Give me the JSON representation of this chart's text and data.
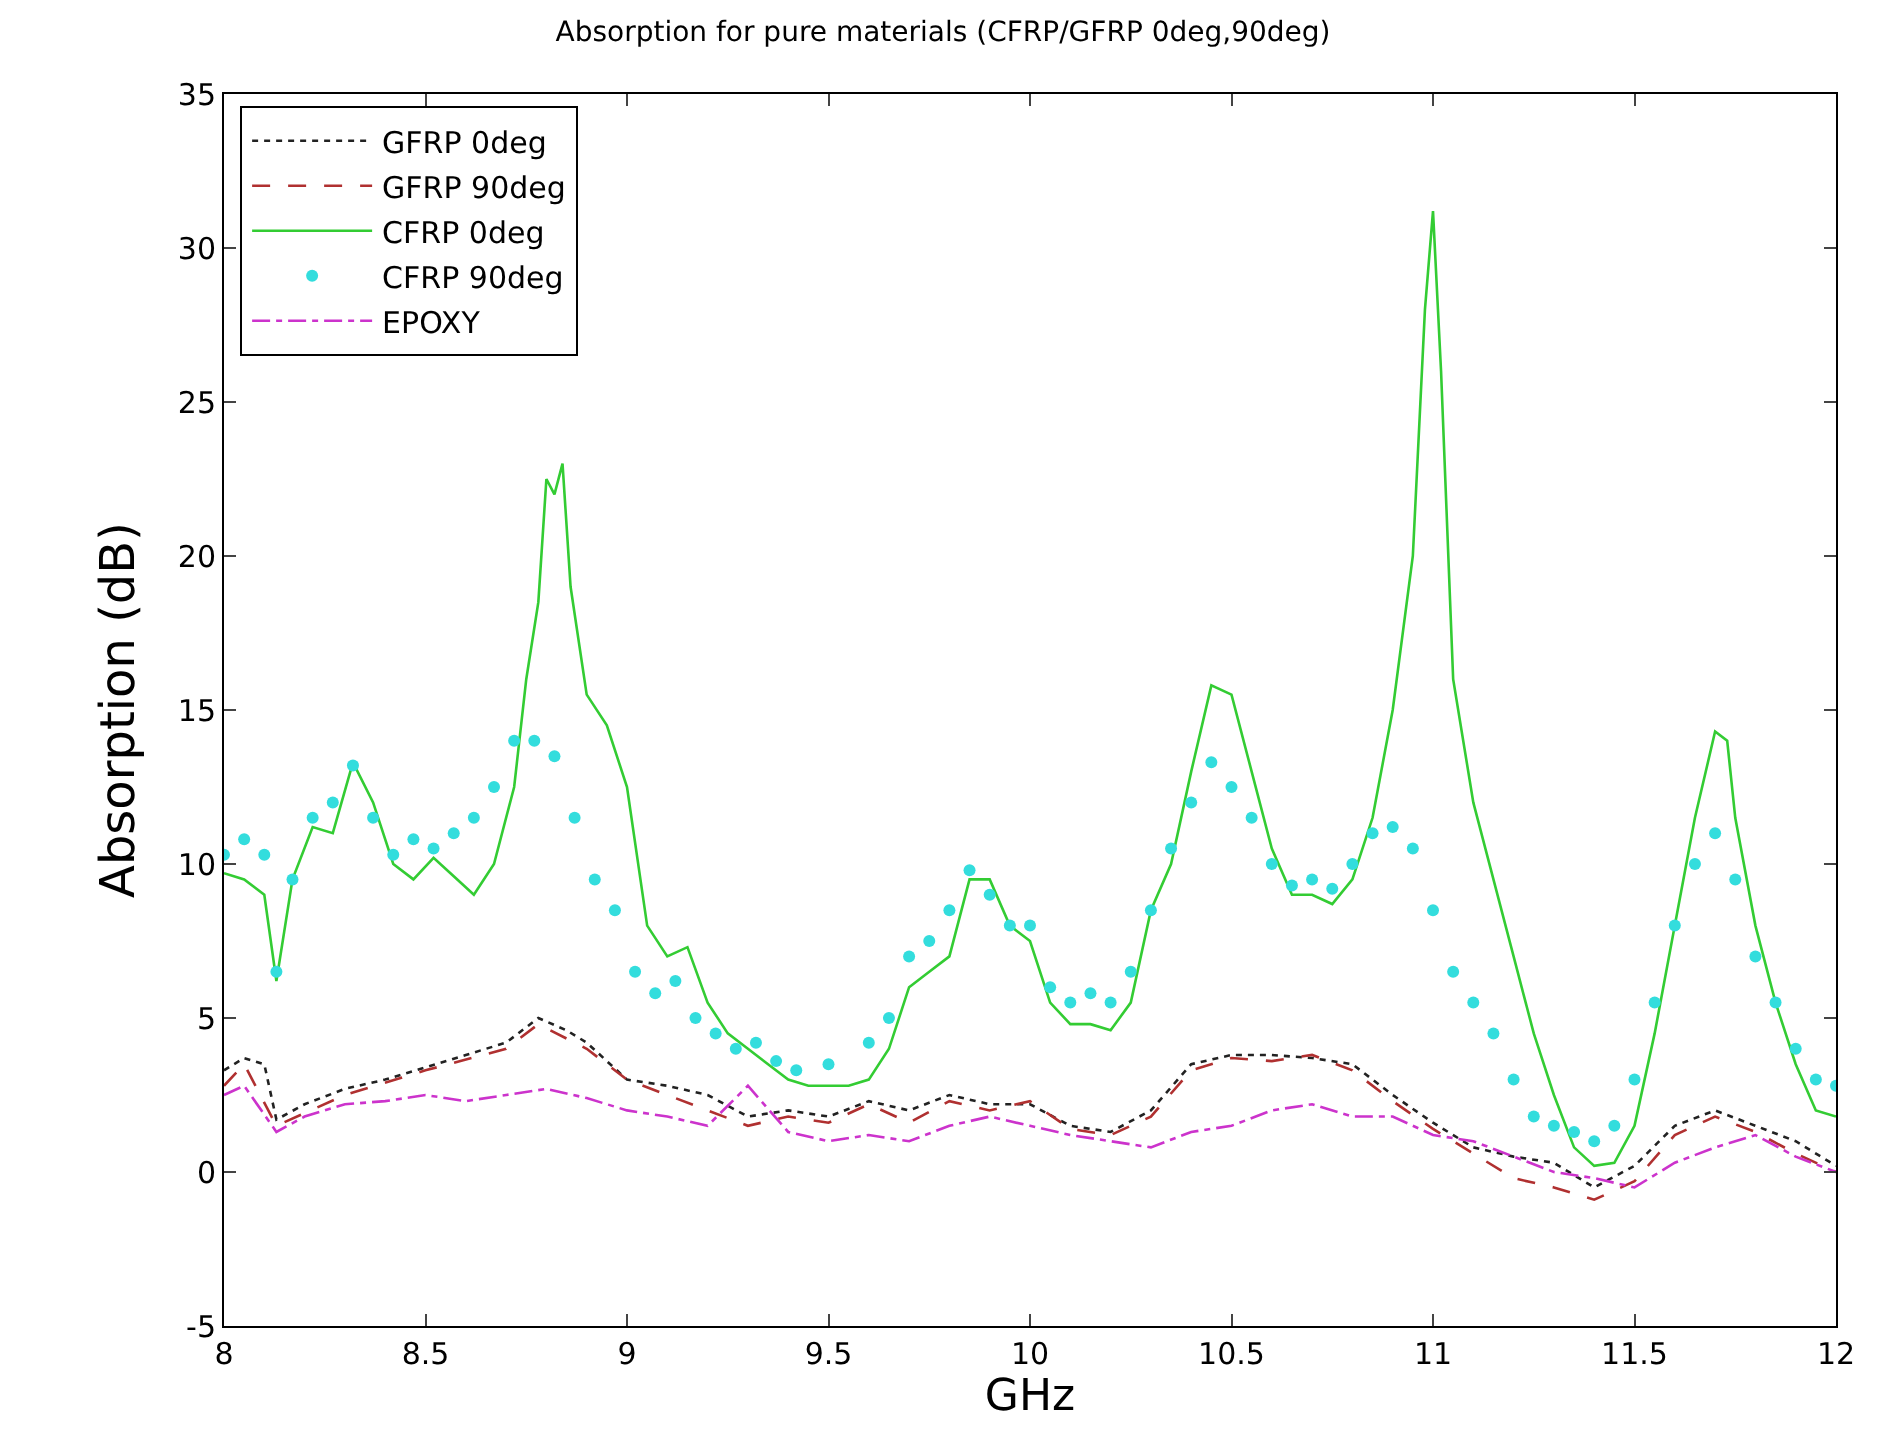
{
  "chart_data": {
    "type": "line",
    "title": "Absorption for pure materials (CFRP/GFRP 0deg,90deg)",
    "xlabel": "GHz",
    "ylabel": "Absorption (dB)",
    "xlim": [
      8,
      12
    ],
    "ylim": [
      -5,
      35
    ],
    "xticks": [
      8,
      8.5,
      9,
      9.5,
      10,
      10.5,
      11,
      11.5,
      12
    ],
    "yticks": [
      -5,
      0,
      5,
      10,
      15,
      20,
      25,
      30,
      35
    ],
    "legend": "top left",
    "series": [
      {
        "name": "GFRP 0deg",
        "color": "#222222",
        "line_style": "dotted",
        "marker": "none",
        "x": [
          8.0,
          8.05,
          8.1,
          8.13,
          8.2,
          8.3,
          8.4,
          8.5,
          8.6,
          8.7,
          8.78,
          8.85,
          8.9,
          9.0,
          9.1,
          9.2,
          9.3,
          9.4,
          9.5,
          9.6,
          9.7,
          9.8,
          9.9,
          10.0,
          10.1,
          10.2,
          10.3,
          10.4,
          10.5,
          10.6,
          10.7,
          10.8,
          10.9,
          11.0,
          11.1,
          11.2,
          11.3,
          11.4,
          11.5,
          11.6,
          11.7,
          11.8,
          11.9,
          12.0
        ],
        "values": [
          3.3,
          3.7,
          3.5,
          1.7,
          2.2,
          2.7,
          3.0,
          3.4,
          3.8,
          4.2,
          5.0,
          4.6,
          4.2,
          3.0,
          2.8,
          2.5,
          1.8,
          2.0,
          1.8,
          2.3,
          2.0,
          2.5,
          2.2,
          2.2,
          1.5,
          1.3,
          2.0,
          3.5,
          3.8,
          3.8,
          3.7,
          3.5,
          2.5,
          1.6,
          0.8,
          0.5,
          0.3,
          -0.5,
          0.2,
          1.5,
          2.0,
          1.5,
          1.0,
          0.2
        ]
      },
      {
        "name": "GFRP 90deg",
        "color": "#b03030",
        "line_style": "dashed",
        "marker": "none",
        "x": [
          8.0,
          8.05,
          8.13,
          8.3,
          8.5,
          8.7,
          8.78,
          8.9,
          9.0,
          9.1,
          9.2,
          9.3,
          9.4,
          9.5,
          9.6,
          9.7,
          9.8,
          9.9,
          10.0,
          10.1,
          10.2,
          10.3,
          10.4,
          10.5,
          10.6,
          10.7,
          10.8,
          10.9,
          11.0,
          11.1,
          11.2,
          11.3,
          11.4,
          11.5,
          11.6,
          11.7,
          11.8,
          11.9,
          12.0
        ],
        "values": [
          2.8,
          3.5,
          1.5,
          2.5,
          3.3,
          4.0,
          4.8,
          4.0,
          3.0,
          2.5,
          2.0,
          1.5,
          1.8,
          1.6,
          2.2,
          1.6,
          2.3,
          2.0,
          2.3,
          1.4,
          1.2,
          1.8,
          3.3,
          3.7,
          3.6,
          3.8,
          3.3,
          2.3,
          1.4,
          0.6,
          -0.2,
          -0.5,
          -0.9,
          -0.3,
          1.2,
          1.8,
          1.3,
          0.6,
          0.0
        ]
      },
      {
        "name": "CFRP 0deg",
        "color": "#33cc33",
        "line_style": "solid",
        "marker": "none",
        "x": [
          8.0,
          8.05,
          8.1,
          8.13,
          8.17,
          8.22,
          8.27,
          8.32,
          8.37,
          8.42,
          8.47,
          8.52,
          8.57,
          8.62,
          8.67,
          8.72,
          8.75,
          8.78,
          8.8,
          8.82,
          8.84,
          8.86,
          8.9,
          8.95,
          9.0,
          9.05,
          9.1,
          9.15,
          9.2,
          9.25,
          9.3,
          9.35,
          9.4,
          9.45,
          9.5,
          9.55,
          9.6,
          9.65,
          9.7,
          9.75,
          9.8,
          9.85,
          9.9,
          9.95,
          10.0,
          10.05,
          10.1,
          10.15,
          10.2,
          10.25,
          10.3,
          10.35,
          10.4,
          10.45,
          10.5,
          10.55,
          10.6,
          10.65,
          10.7,
          10.75,
          10.8,
          10.85,
          10.9,
          10.95,
          10.98,
          11.0,
          11.02,
          11.05,
          11.1,
          11.15,
          11.2,
          11.25,
          11.3,
          11.35,
          11.4,
          11.45,
          11.5,
          11.55,
          11.6,
          11.65,
          11.7,
          11.73,
          11.75,
          11.8,
          11.85,
          11.9,
          11.95,
          12.0
        ],
        "values": [
          9.7,
          9.5,
          9.0,
          6.2,
          9.5,
          11.2,
          11.0,
          13.3,
          12.0,
          10.0,
          9.5,
          10.2,
          9.6,
          9.0,
          10.0,
          12.5,
          16,
          18.5,
          22.5,
          22.0,
          23.0,
          19,
          15.5,
          14.5,
          12.5,
          8.0,
          7.0,
          7.3,
          5.5,
          4.5,
          4.0,
          3.5,
          3.0,
          2.8,
          2.8,
          2.8,
          3.0,
          4.0,
          6.0,
          6.5,
          7.0,
          9.5,
          9.5,
          8.0,
          7.5,
          5.5,
          4.8,
          4.8,
          4.6,
          5.5,
          8.5,
          10.0,
          13.0,
          15.8,
          15.5,
          13.0,
          10.5,
          9.0,
          9.0,
          8.7,
          9.5,
          11.5,
          15.0,
          20,
          28,
          31.2,
          26,
          16,
          12.0,
          9.5,
          7.0,
          4.5,
          2.5,
          0.8,
          0.2,
          0.3,
          1.5,
          4.5,
          8.0,
          11.5,
          14.3,
          14.0,
          11.5,
          8.0,
          5.5,
          3.5,
          2.0,
          1.8
        ]
      },
      {
        "name": "CFRP 90deg",
        "type": "scatter",
        "color": "#33dddd",
        "marker": "circle",
        "x": [
          8.0,
          8.05,
          8.1,
          8.13,
          8.17,
          8.22,
          8.27,
          8.32,
          8.37,
          8.42,
          8.47,
          8.52,
          8.57,
          8.62,
          8.67,
          8.72,
          8.77,
          8.82,
          8.87,
          8.92,
          8.97,
          9.02,
          9.07,
          9.12,
          9.17,
          9.22,
          9.27,
          9.32,
          9.37,
          9.42,
          9.5,
          9.6,
          9.65,
          9.7,
          9.75,
          9.8,
          9.85,
          9.9,
          9.95,
          10.0,
          10.05,
          10.1,
          10.15,
          10.2,
          10.25,
          10.3,
          10.35,
          10.4,
          10.45,
          10.5,
          10.55,
          10.6,
          10.65,
          10.7,
          10.75,
          10.8,
          10.85,
          10.9,
          10.95,
          11.0,
          11.05,
          11.1,
          11.15,
          11.2,
          11.25,
          11.3,
          11.35,
          11.4,
          11.45,
          11.5,
          11.55,
          11.6,
          11.65,
          11.7,
          11.75,
          11.8,
          11.85,
          11.9,
          11.95,
          12.0
        ],
        "values": [
          10.3,
          10.8,
          10.3,
          6.5,
          9.5,
          11.5,
          12.0,
          13.2,
          11.5,
          10.3,
          10.8,
          10.5,
          11.0,
          11.5,
          12.5,
          14.0,
          14.0,
          13.5,
          11.5,
          9.5,
          8.5,
          6.5,
          5.8,
          6.2,
          5.0,
          4.5,
          4.0,
          4.2,
          3.6,
          3.3,
          3.5,
          4.2,
          5.0,
          7.0,
          7.5,
          8.5,
          9.8,
          9.0,
          8.0,
          8.0,
          6.0,
          5.5,
          5.8,
          5.5,
          6.5,
          8.5,
          10.5,
          12.0,
          13.3,
          12.5,
          11.5,
          10.0,
          9.3,
          9.5,
          9.2,
          10.0,
          11.0,
          11.2,
          10.5,
          8.5,
          6.5,
          5.5,
          4.5,
          3.0,
          1.8,
          1.5,
          1.3,
          1.0,
          1.5,
          3.0,
          5.5,
          8.0,
          10.0,
          11.0,
          9.5,
          7.0,
          5.5,
          4.0,
          3.0,
          2.8
        ]
      },
      {
        "name": "EPOXY",
        "color": "#cc33cc",
        "line_style": "dashdot",
        "marker": "none",
        "x": [
          8.0,
          8.05,
          8.13,
          8.2,
          8.3,
          8.4,
          8.5,
          8.6,
          8.7,
          8.8,
          8.9,
          9.0,
          9.1,
          9.2,
          9.3,
          9.4,
          9.5,
          9.6,
          9.7,
          9.8,
          9.9,
          10.0,
          10.1,
          10.2,
          10.3,
          10.4,
          10.5,
          10.6,
          10.7,
          10.8,
          10.9,
          11.0,
          11.1,
          11.2,
          11.3,
          11.4,
          11.5,
          11.6,
          11.7,
          11.8,
          11.9,
          12.0
        ],
        "values": [
          2.5,
          2.8,
          1.3,
          1.8,
          2.2,
          2.3,
          2.5,
          2.3,
          2.5,
          2.7,
          2.4,
          2.0,
          1.8,
          1.5,
          2.8,
          1.3,
          1.0,
          1.2,
          1.0,
          1.5,
          1.8,
          1.5,
          1.2,
          1.0,
          0.8,
          1.3,
          1.5,
          2.0,
          2.2,
          1.8,
          1.8,
          1.2,
          1.0,
          0.5,
          0.0,
          -0.2,
          -0.5,
          0.3,
          0.8,
          1.2,
          0.5,
          0.0
        ]
      }
    ]
  }
}
